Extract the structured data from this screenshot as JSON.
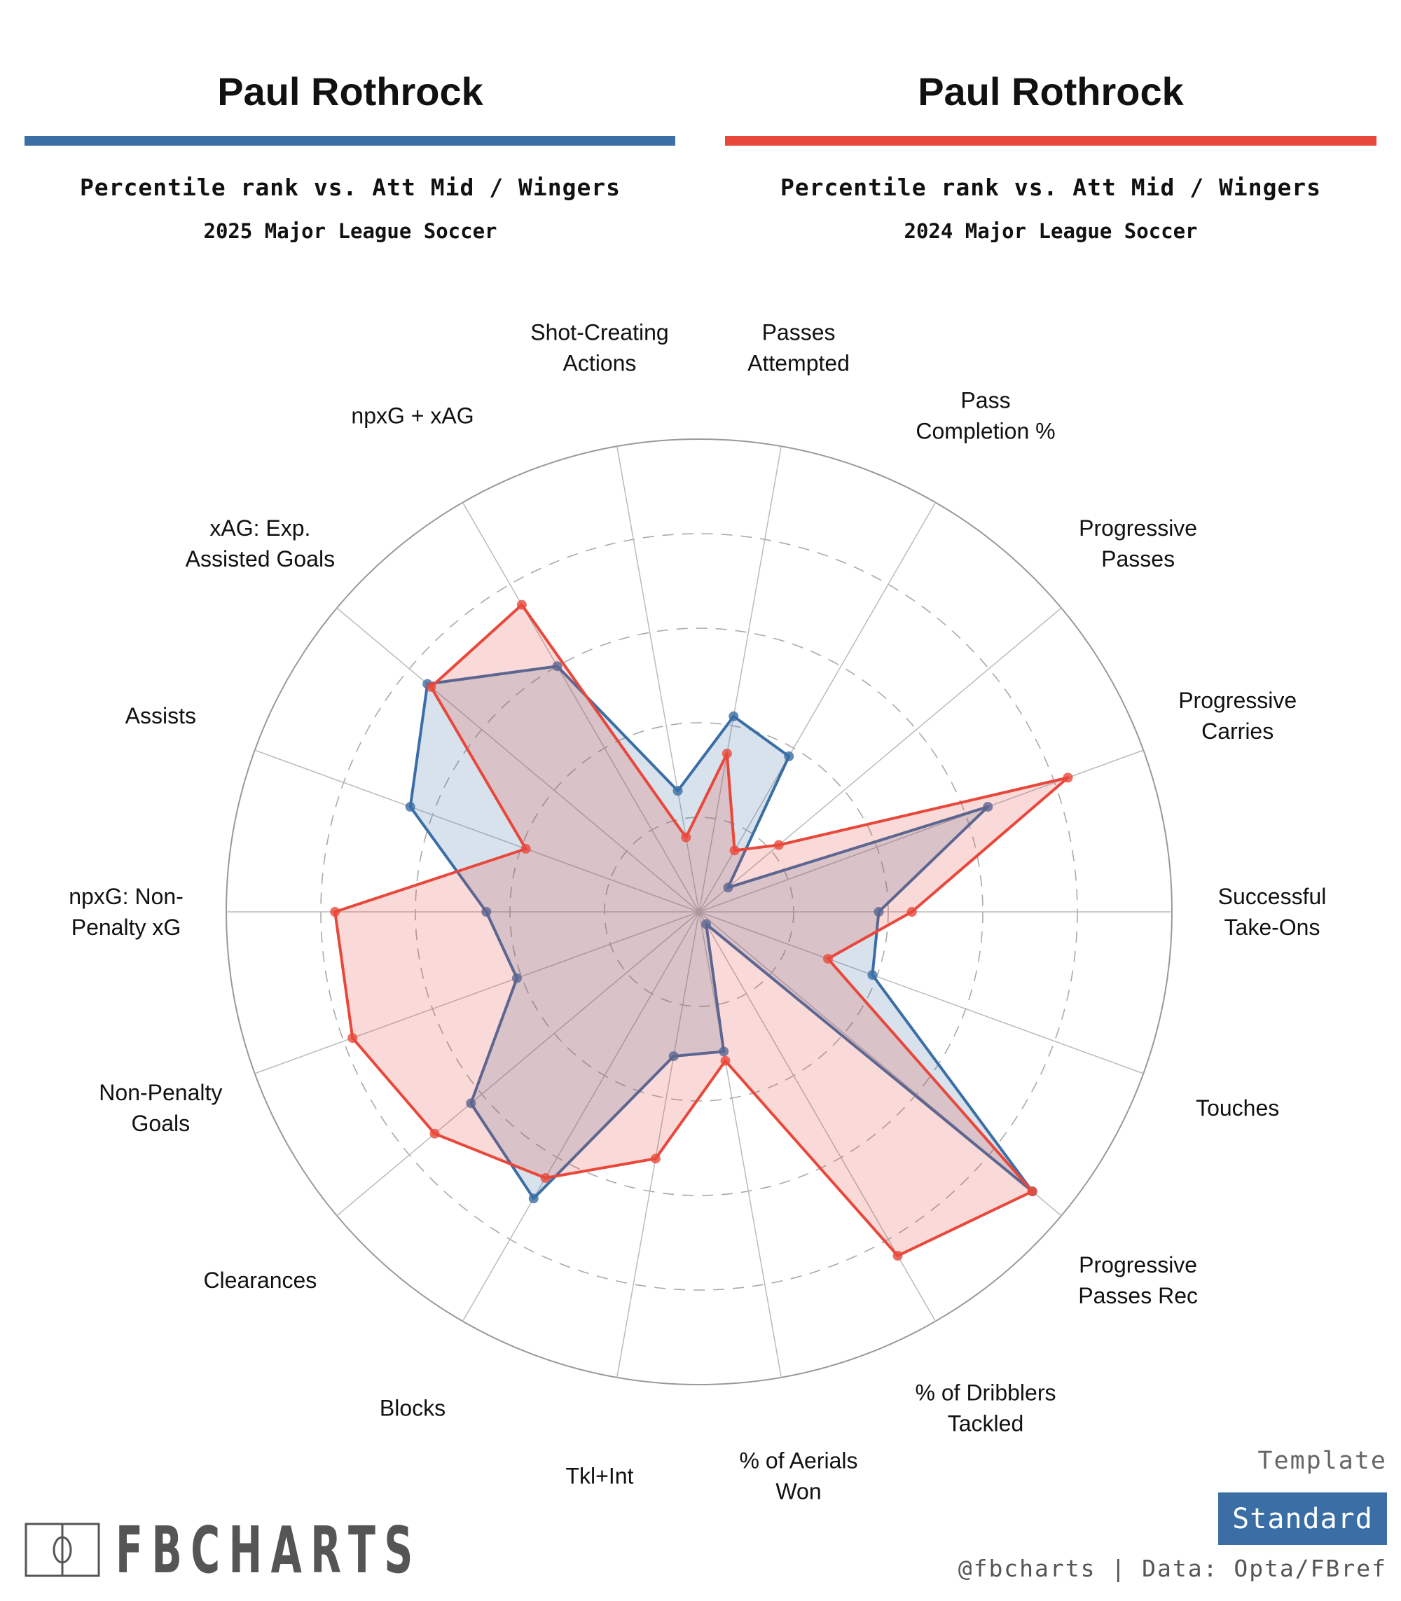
{
  "left_header": {
    "player": "Paul Rothrock",
    "subtitle": "Percentile rank vs. Att Mid / Wingers",
    "season": "2025 Major League Soccer",
    "color": "#3a6ea5"
  },
  "right_header": {
    "player": "Paul Rothrock",
    "subtitle": "Percentile rank vs. Att Mid / Wingers",
    "season": "2024 Major League Soccer",
    "color": "#e8483b"
  },
  "chart_data": {
    "type": "radar",
    "range": [
      0,
      100
    ],
    "gridlines": [
      20,
      40,
      60,
      80,
      100
    ],
    "categories": [
      "Passes\nAttempted",
      "Pass\nCompletion %",
      "Progressive\nPasses",
      "Progressive\nCarries",
      "Successful\nTake-Ons",
      "Touches",
      "Progressive\nPasses Rec",
      "% of Dribblers\nTackled",
      "% of Aerials\nWon",
      "Tkl+Int",
      "Blocks",
      "Clearances",
      "Non-Penalty\nGoals",
      "npxG: Non-\nPenalty xG",
      "Assists",
      "xAG: Exp.\nAssisted Goals",
      "npxG + xAG",
      "Shot-Creating\nActions"
    ],
    "series": [
      {
        "season": "2025",
        "color": "#3a6ea5",
        "values": [
          42,
          38,
          8,
          65,
          38,
          39,
          92,
          3,
          30,
          31,
          70,
          63,
          41,
          45,
          65,
          75,
          60,
          26
        ]
      },
      {
        "season": "2024",
        "color": "#e8483b",
        "values": [
          34,
          15,
          22,
          83,
          45,
          29,
          92,
          84,
          32,
          53,
          65,
          73,
          78,
          77,
          39,
          74,
          75,
          16
        ]
      }
    ]
  },
  "footer": {
    "logo": "FBCHARTS",
    "template_label": "Template",
    "template_value": "Standard",
    "credit": "@fbcharts | Data: Opta/FBref",
    "accent": "#3a6ea5"
  }
}
